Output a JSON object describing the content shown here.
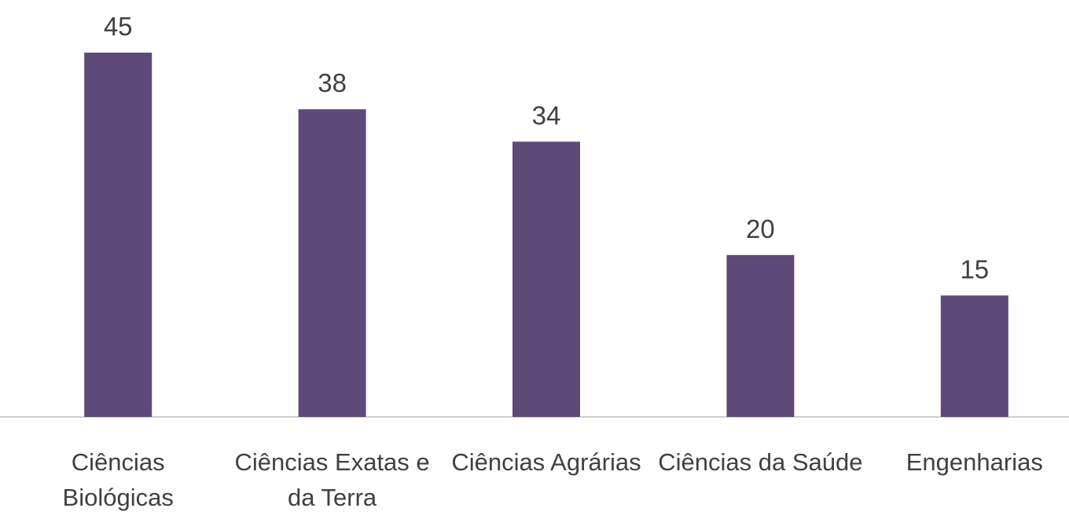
{
  "chart_data": {
    "type": "bar",
    "categories": [
      "Ciências Biológicas",
      "Ciências Exatas e da Terra",
      "Ciências Agrárias",
      "Ciências da Saúde",
      "Engenharias"
    ],
    "values": [
      45,
      38,
      34,
      20,
      15
    ],
    "color": "#5e4a78"
  }
}
